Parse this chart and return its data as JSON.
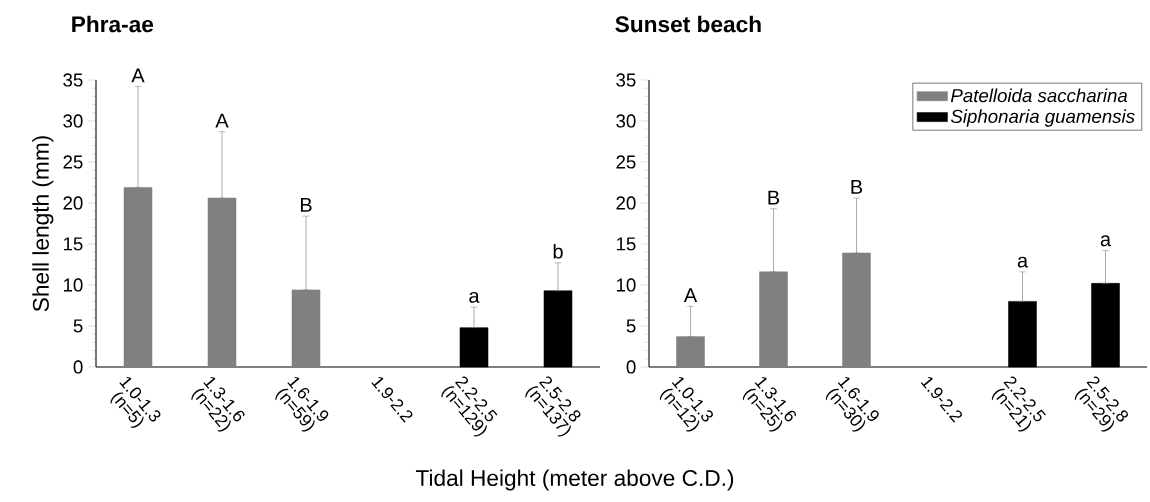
{
  "chart_data": [
    {
      "type": "bar",
      "title": "Phra-ae",
      "xlabel": "Tidal Height (meter above C.D.)",
      "ylabel": "Shell length (mm)",
      "categories": [
        "1.0-1.3 (n=5)",
        "1.3-1.6 (n=22)",
        "1.6-1.9 (n=59)",
        "1.9-2.2",
        "2.2-2.5 (n=129)",
        "2.5-2.8 (n=137)"
      ],
      "series": [
        {
          "color": "#808080",
          "values": [
            21.9,
            20.6,
            9.4,
            null,
            null,
            null
          ],
          "errors": [
            [
              21.9,
              34.2
            ],
            [
              20.6,
              28.7
            ],
            [
              9.4,
              18.4
            ],
            null,
            null,
            null
          ]
        },
        {
          "color": "#000000",
          "values": [
            null,
            null,
            null,
            null,
            4.8,
            9.3
          ],
          "errors": [
            null,
            null,
            null,
            null,
            [
              4.8,
              7.3
            ],
            [
              9.3,
              12.7
            ]
          ]
        }
      ],
      "ylim": [
        0,
        35
      ],
      "yticks": [
        0,
        5,
        10,
        15,
        20,
        25,
        30,
        35
      ],
      "legend": false,
      "annotations": [
        {
          "text": "A",
          "x": "1.0-1.3 (n=5)",
          "y": 34.2
        },
        {
          "text": "A",
          "x": "1.3-1.6 (n=22)",
          "y": 28.7
        },
        {
          "text": "B",
          "x": "1.6-1.9 (n=59)",
          "y": 18.4
        },
        {
          "text": "a",
          "x": "2.2-2.5 (n=129)",
          "y": 7.3
        },
        {
          "text": "b",
          "x": "2.5-2.8 (n=137)",
          "y": 12.7
        }
      ]
    },
    {
      "type": "bar",
      "title": "Sunset beach",
      "categories": [
        "1.0-1.3 (n=12)",
        "1.3-1.6 (n=25)",
        "1.6-1.9 (n=30)",
        "1.9-2.2",
        "2.2-2.5 (n=21)",
        "2.5-2.8 (n=29)"
      ],
      "series": [
        {
          "name": "Patelloida saccharina",
          "color": "#808080",
          "values": [
            3.7,
            11.6,
            13.9,
            null,
            null,
            null
          ],
          "errors": [
            [
              3.7,
              7.4
            ],
            [
              11.6,
              19.3
            ],
            [
              13.9,
              20.6
            ],
            null,
            null,
            null
          ]
        },
        {
          "name": "Siphonaria guamensis",
          "color": "#000000",
          "values": [
            null,
            null,
            null,
            null,
            8.0,
            10.2
          ],
          "errors": [
            null,
            null,
            null,
            null,
            [
              8.0,
              11.6
            ],
            [
              10.2,
              14.2
            ]
          ]
        }
      ],
      "ylim": [
        0,
        35
      ],
      "yticks": [
        0,
        5,
        10,
        15,
        20,
        25,
        30,
        35
      ],
      "legend": "top right",
      "annotations": [
        {
          "text": "A",
          "x": "1.0-1.3 (n=12)",
          "y": 7.4
        },
        {
          "text": "B",
          "x": "1.3-1.6 (n=25)",
          "y": 19.3
        },
        {
          "text": "B",
          "x": "1.6-1.9 (n=30)",
          "y": 20.6
        },
        {
          "text": "a",
          "x": "2.2-2.5 (n=21)",
          "y": 11.6
        },
        {
          "text": "a",
          "x": "2.5-2.8 (n=29)",
          "y": 14.2
        }
      ]
    }
  ]
}
